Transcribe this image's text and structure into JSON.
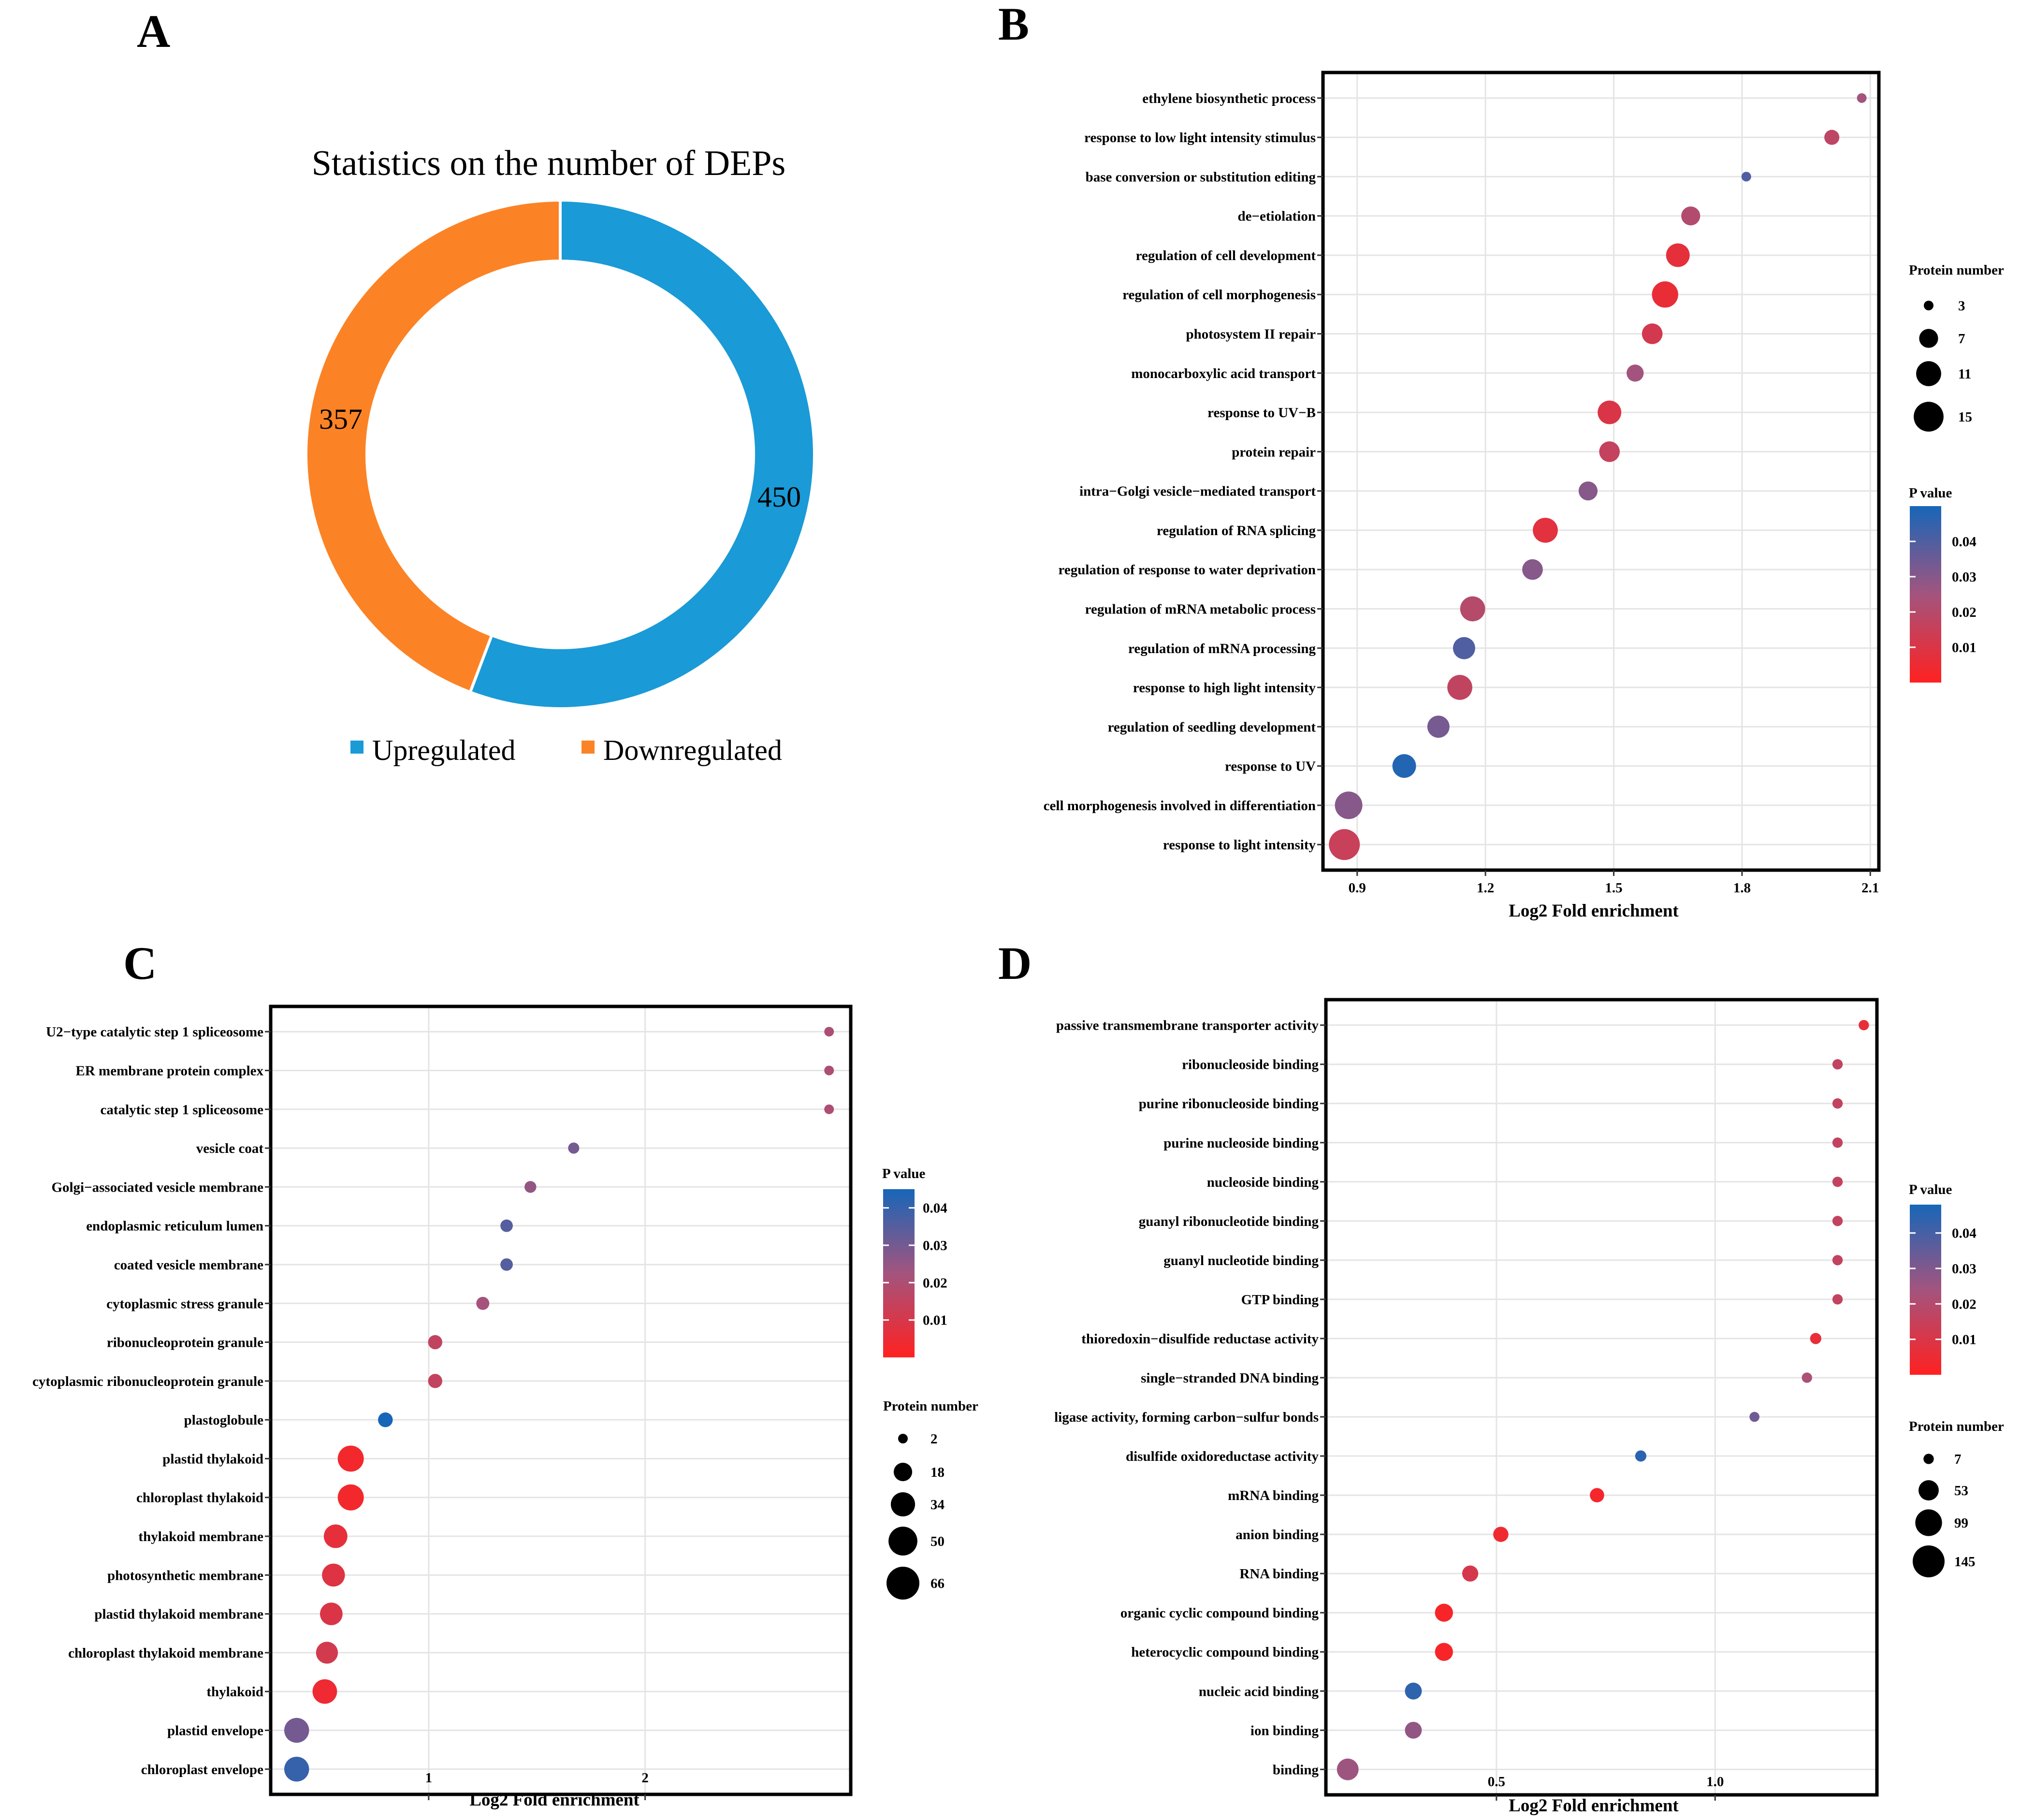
{
  "panel_letters": {
    "a": "A",
    "b": "B",
    "c": "C",
    "d": "D"
  },
  "colors": {
    "upregulated": "#1a9ad6",
    "downregulated": "#fb8326",
    "pvalue_low": "#ff2121",
    "pvalue_mid": "#a3547e",
    "pvalue_high": "#1766b8"
  },
  "chart_data": [
    {
      "panel": "A",
      "type": "pie",
      "title": "Statistics on the number of DEPs",
      "slices": [
        {
          "label": "Upregulated",
          "value": 450,
          "value_text": "450"
        },
        {
          "label": "Downregulated",
          "value": 357,
          "value_text": "357"
        }
      ],
      "legend": [
        "Upregulated",
        "Downregulated"
      ],
      "legend_position": "bottom"
    },
    {
      "panel": "B",
      "type": "scatter",
      "xlabel": "Log2 Fold enrichment",
      "xlim": [
        0.82,
        2.12
      ],
      "xticks": [
        0.9,
        1.2,
        1.5,
        1.8,
        2.1
      ],
      "xtick_labels": [
        "0.9",
        "1.2",
        "1.5",
        "1.8",
        "2.1"
      ],
      "categories": [
        "ethylene biosynthetic process",
        "response to low light intensity stimulus",
        "base conversion or substitution editing",
        "de−etiolation",
        "regulation of cell development",
        "regulation of cell morphogenesis",
        "photosystem II repair",
        "monocarboxylic acid transport",
        "response to UV−B",
        "protein repair",
        "intra−Golgi vesicle−mediated transport",
        "regulation of RNA splicing",
        "regulation of response to water deprivation",
        "regulation of mRNA metabolic process",
        "regulation of mRNA processing",
        "response to high light intensity",
        "regulation of seedling development",
        "response to UV",
        "cell morphogenesis involved in differentiation",
        "response to light intensity"
      ],
      "x": [
        2.08,
        2.01,
        1.81,
        1.68,
        1.65,
        1.62,
        1.59,
        1.55,
        1.49,
        1.49,
        1.44,
        1.34,
        1.31,
        1.17,
        1.15,
        1.14,
        1.09,
        1.01,
        0.88,
        0.87
      ],
      "protein_number": [
        3,
        5,
        3,
        7,
        10,
        12,
        8,
        6,
        10,
        8,
        7,
        11,
        8,
        11,
        9,
        11,
        9,
        10,
        13,
        16
      ],
      "p_value": [
        0.025,
        0.018,
        0.04,
        0.021,
        0.007,
        0.006,
        0.012,
        0.025,
        0.01,
        0.016,
        0.03,
        0.008,
        0.03,
        0.02,
        0.04,
        0.017,
        0.033,
        0.048,
        0.03,
        0.015
      ],
      "size_legend": {
        "title": "Protein number",
        "values": [
          3,
          7,
          11,
          15
        ],
        "labels": [
          "3",
          "7",
          "11",
          "15"
        ],
        "range": [
          3,
          16
        ]
      },
      "color_legend": {
        "title": "P value",
        "ticks": [
          0.04,
          0.03,
          0.02,
          0.01
        ],
        "labels": [
          "0.04",
          "0.03",
          "0.02",
          "0.01"
        ],
        "range": [
          0.0,
          0.05
        ]
      }
    },
    {
      "panel": "C",
      "type": "scatter",
      "xlabel": "Log2 Fold enrichment",
      "xlim": [
        0.27,
        2.95
      ],
      "xticks": [
        1,
        2
      ],
      "xtick_labels": [
        "1",
        "2"
      ],
      "categories": [
        "U2−type catalytic step 1 spliceosome",
        "ER membrane protein complex",
        "catalytic step 1 spliceosome",
        "vesicle coat",
        "Golgi−associated vesicle membrane",
        "endoplasmic reticulum lumen",
        "coated vesicle membrane",
        "cytoplasmic stress granule",
        "ribonucleoprotein granule",
        "cytoplasmic ribonucleoprotein granule",
        "plastoglobule",
        "plastid thylakoid",
        "chloroplast thylakoid",
        "thylakoid membrane",
        "photosynthetic membrane",
        "plastid thylakoid membrane",
        "chloroplast thylakoid membrane",
        "thylakoid",
        "plastid envelope",
        "chloroplast envelope"
      ],
      "x": [
        2.85,
        2.85,
        2.85,
        1.67,
        1.47,
        1.36,
        1.36,
        1.25,
        1.03,
        1.03,
        0.8,
        0.64,
        0.64,
        0.57,
        0.56,
        0.55,
        0.53,
        0.52,
        0.39,
        0.39
      ],
      "protein_number": [
        2,
        2,
        2,
        4,
        5,
        6,
        6,
        7,
        9,
        9,
        10,
        40,
        40,
        32,
        30,
        29,
        27,
        35,
        36,
        36
      ],
      "p_value": [
        0.02,
        0.02,
        0.02,
        0.03,
        0.025,
        0.035,
        0.035,
        0.022,
        0.015,
        0.015,
        0.045,
        0.003,
        0.003,
        0.006,
        0.008,
        0.009,
        0.011,
        0.004,
        0.03,
        0.04
      ],
      "size_legend": {
        "title": "Protein number",
        "values": [
          2,
          18,
          34,
          50,
          66
        ],
        "labels": [
          "2",
          "18",
          "34",
          "50",
          "66"
        ],
        "range": [
          2,
          66
        ]
      },
      "color_legend": {
        "title": "P value",
        "ticks": [
          0.04,
          0.03,
          0.02,
          0.01
        ],
        "labels": [
          "0.04",
          "0.03",
          "0.02",
          "0.01"
        ],
        "range": [
          0.0,
          0.045
        ]
      }
    },
    {
      "panel": "D",
      "type": "scatter",
      "xlabel": "Log2 Fold enrichment",
      "xlim": [
        0.11,
        1.37
      ],
      "xticks": [
        0.5,
        1.0
      ],
      "xtick_labels": [
        "0.5",
        "1.0"
      ],
      "categories": [
        "passive transmembrane transporter activity",
        "ribonucleoside binding",
        "purine ribonucleoside binding",
        "purine nucleoside binding",
        "nucleoside binding",
        "guanyl ribonucleotide binding",
        "guanyl nucleotide binding",
        "GTP binding",
        "thioredoxin−disulfide reductase activity",
        "single−stranded DNA binding",
        "ligase activity, forming carbon−sulfur bonds",
        "disulfide oxidoreductase activity",
        "mRNA binding",
        "anion binding",
        "RNA binding",
        "organic cyclic compound binding",
        "heterocyclic compound binding",
        "nucleic acid binding",
        "ion binding",
        "binding"
      ],
      "x": [
        1.34,
        1.28,
        1.28,
        1.28,
        1.28,
        1.28,
        1.28,
        1.28,
        1.23,
        1.21,
        1.09,
        0.83,
        0.73,
        0.51,
        0.44,
        0.38,
        0.38,
        0.31,
        0.31,
        0.16
      ],
      "protein_number": [
        7,
        7,
        7,
        7,
        7,
        7,
        7,
        7,
        10,
        7,
        6,
        10,
        22,
        26,
        30,
        40,
        40,
        34,
        34,
        62
      ],
      "p_value": [
        0.006,
        0.016,
        0.016,
        0.016,
        0.016,
        0.016,
        0.016,
        0.016,
        0.006,
        0.022,
        0.033,
        0.045,
        0.003,
        0.004,
        0.011,
        0.002,
        0.002,
        0.044,
        0.027,
        0.025
      ],
      "size_legend": {
        "title": "Protein number",
        "values": [
          7,
          53,
          99,
          145
        ],
        "labels": [
          "7",
          "53",
          "99",
          "145"
        ],
        "range": [
          5,
          145
        ]
      },
      "color_legend": {
        "title": "P value",
        "ticks": [
          0.04,
          0.03,
          0.02,
          0.01
        ],
        "labels": [
          "0.04",
          "0.03",
          "0.02",
          "0.01"
        ],
        "range": [
          0.0,
          0.048
        ]
      }
    }
  ]
}
